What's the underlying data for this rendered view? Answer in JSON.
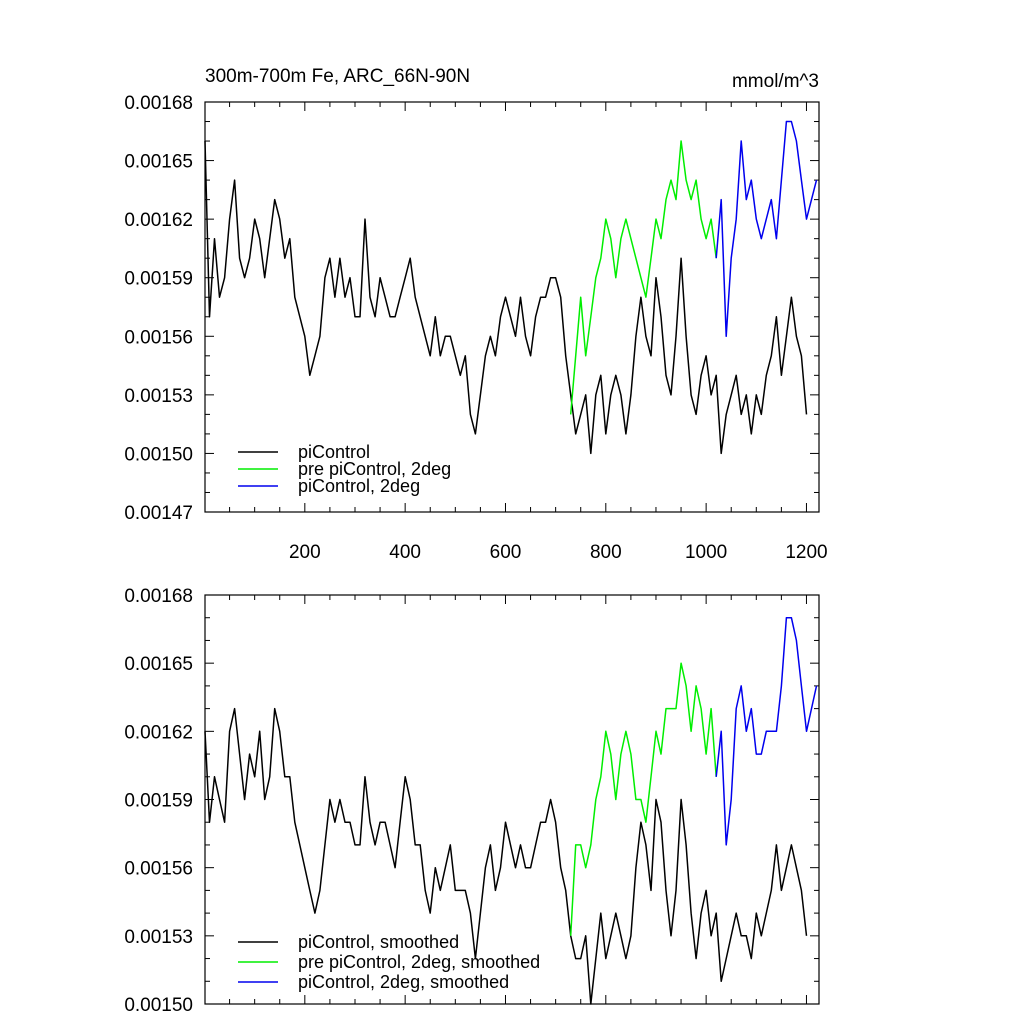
{
  "chart_data": [
    {
      "type": "line",
      "title": "300m-700m Fe, ARC_66N-90N",
      "units": "mmol/m^3",
      "xlabel": "",
      "ylabel": "",
      "xlim": [
        1,
        1225
      ],
      "ylim": [
        0.00147,
        0.00168
      ],
      "xticks": [
        200,
        400,
        600,
        800,
        1000,
        1200
      ],
      "xtick_labels": [
        "200",
        "400",
        "600",
        "800",
        "1000",
        "1200"
      ],
      "yticks": [
        0.00147,
        0.0015,
        0.00153,
        0.00156,
        0.00159,
        0.00162,
        0.00165,
        0.00168
      ],
      "ytick_labels": [
        "0.00147",
        "0.00150",
        "0.00153",
        "0.00156",
        "0.00159",
        "0.00162",
        "0.00165",
        "0.00168"
      ],
      "grid": false,
      "legend_position": "bottom-left",
      "series": [
        {
          "name": "piControl",
          "color": "#000000",
          "x": [
            1,
            10,
            20,
            30,
            40,
            50,
            60,
            70,
            80,
            90,
            100,
            110,
            120,
            130,
            140,
            150,
            160,
            170,
            180,
            190,
            200,
            210,
            220,
            230,
            240,
            250,
            260,
            270,
            280,
            290,
            300,
            310,
            320,
            330,
            340,
            350,
            360,
            370,
            380,
            390,
            400,
            410,
            420,
            430,
            440,
            450,
            460,
            470,
            480,
            490,
            500,
            510,
            520,
            530,
            540,
            550,
            560,
            570,
            580,
            590,
            600,
            610,
            620,
            630,
            640,
            650,
            660,
            670,
            680,
            690,
            700,
            710,
            720,
            730,
            740,
            750,
            760,
            770,
            780,
            790,
            800,
            810,
            820,
            830,
            840,
            850,
            860,
            870,
            880,
            890,
            900,
            910,
            920,
            930,
            940,
            950,
            960,
            970,
            980,
            990,
            1000,
            1010,
            1020,
            1030,
            1040,
            1050,
            1060,
            1070,
            1080,
            1090,
            1100,
            1110,
            1120,
            1130,
            1140,
            1150,
            1160,
            1170,
            1180,
            1190,
            1200
          ],
          "y": [
            0.00166,
            0.00157,
            0.00161,
            0.00158,
            0.00159,
            0.00162,
            0.00164,
            0.0016,
            0.00159,
            0.0016,
            0.00162,
            0.00161,
            0.00159,
            0.00161,
            0.00163,
            0.00162,
            0.0016,
            0.00161,
            0.00158,
            0.00157,
            0.00156,
            0.00154,
            0.00155,
            0.00156,
            0.00159,
            0.0016,
            0.00158,
            0.0016,
            0.00158,
            0.00159,
            0.00157,
            0.00157,
            0.00162,
            0.00158,
            0.00157,
            0.00159,
            0.00158,
            0.00157,
            0.00157,
            0.00158,
            0.00159,
            0.0016,
            0.00158,
            0.00157,
            0.00156,
            0.00155,
            0.00157,
            0.00155,
            0.00156,
            0.00156,
            0.00155,
            0.00154,
            0.00155,
            0.00152,
            0.00151,
            0.00153,
            0.00155,
            0.00156,
            0.00155,
            0.00157,
            0.00158,
            0.00157,
            0.00156,
            0.00158,
            0.00156,
            0.00155,
            0.00157,
            0.00158,
            0.00158,
            0.00159,
            0.00159,
            0.00158,
            0.00155,
            0.00153,
            0.00151,
            0.00152,
            0.00153,
            0.0015,
            0.00153,
            0.00154,
            0.00151,
            0.00153,
            0.00154,
            0.00153,
            0.00151,
            0.00153,
            0.00156,
            0.00158,
            0.00156,
            0.00155,
            0.00159,
            0.00157,
            0.00154,
            0.00153,
            0.00156,
            0.0016,
            0.00156,
            0.00153,
            0.00152,
            0.00154,
            0.00155,
            0.00153,
            0.00154,
            0.0015,
            0.00152,
            0.00153,
            0.00154,
            0.00152,
            0.00153,
            0.00151,
            0.00153,
            0.00152,
            0.00154,
            0.00155,
            0.00157,
            0.00154,
            0.00156,
            0.00158,
            0.00156,
            0.00155,
            0.00152
          ]
        },
        {
          "name": "pre piControl, 2deg",
          "color": "#00ee00",
          "x": [
            730,
            740,
            750,
            760,
            770,
            780,
            790,
            800,
            810,
            820,
            830,
            840,
            850,
            860,
            870,
            880,
            890,
            900,
            910,
            920,
            930,
            940,
            950,
            960,
            970,
            980,
            990,
            1000,
            1010,
            1020
          ],
          "y": [
            0.00152,
            0.00155,
            0.00158,
            0.00155,
            0.00157,
            0.00159,
            0.0016,
            0.00162,
            0.00161,
            0.00159,
            0.00161,
            0.00162,
            0.00161,
            0.0016,
            0.00159,
            0.00158,
            0.0016,
            0.00162,
            0.00161,
            0.00163,
            0.00164,
            0.00163,
            0.00166,
            0.00164,
            0.00163,
            0.00164,
            0.00162,
            0.00161,
            0.00162,
            0.0016
          ]
        },
        {
          "name": "piControl, 2deg",
          "color": "#0000ee",
          "x": [
            1020,
            1030,
            1040,
            1050,
            1060,
            1070,
            1080,
            1090,
            1100,
            1110,
            1120,
            1130,
            1140,
            1150,
            1160,
            1170,
            1180,
            1190,
            1200,
            1210,
            1220
          ],
          "y": [
            0.0016,
            0.00163,
            0.00156,
            0.0016,
            0.00162,
            0.00166,
            0.00163,
            0.00164,
            0.00162,
            0.00161,
            0.00162,
            0.00163,
            0.00161,
            0.00164,
            0.00167,
            0.00167,
            0.00166,
            0.00164,
            0.00162,
            0.00163,
            0.00164
          ]
        }
      ]
    },
    {
      "type": "line",
      "title": "",
      "xlabel": "",
      "ylabel": "",
      "xlim": [
        1,
        1225
      ],
      "ylim": [
        0.0015,
        0.00168
      ],
      "xticks": [
        200,
        400,
        600,
        800,
        1000,
        1200
      ],
      "yticks": [
        0.0015,
        0.00153,
        0.00156,
        0.00159,
        0.00162,
        0.00165,
        0.00168
      ],
      "ytick_labels": [
        "0.00150",
        "0.00153",
        "0.00156",
        "0.00159",
        "0.00162",
        "0.00165",
        "0.00168"
      ],
      "grid": false,
      "legend_position": "bottom-left",
      "series": [
        {
          "name": "piControl, smoothed",
          "color": "#000000",
          "x": [
            1,
            10,
            20,
            30,
            40,
            50,
            60,
            70,
            80,
            90,
            100,
            110,
            120,
            130,
            140,
            150,
            160,
            170,
            180,
            190,
            200,
            210,
            220,
            230,
            240,
            250,
            260,
            270,
            280,
            290,
            300,
            310,
            320,
            330,
            340,
            350,
            360,
            370,
            380,
            390,
            400,
            410,
            420,
            430,
            440,
            450,
            460,
            470,
            480,
            490,
            500,
            510,
            520,
            530,
            540,
            550,
            560,
            570,
            580,
            590,
            600,
            610,
            620,
            630,
            640,
            650,
            660,
            670,
            680,
            690,
            700,
            710,
            720,
            730,
            740,
            750,
            760,
            770,
            780,
            790,
            800,
            810,
            820,
            830,
            840,
            850,
            860,
            870,
            880,
            890,
            900,
            910,
            920,
            930,
            940,
            950,
            960,
            970,
            980,
            990,
            1000,
            1010,
            1020,
            1030,
            1040,
            1050,
            1060,
            1070,
            1080,
            1090,
            1100,
            1110,
            1120,
            1130,
            1140,
            1150,
            1160,
            1170,
            1180,
            1190,
            1200
          ],
          "y": [
            0.00162,
            0.00158,
            0.0016,
            0.00159,
            0.00158,
            0.00162,
            0.00163,
            0.00161,
            0.00159,
            0.00161,
            0.0016,
            0.00162,
            0.00159,
            0.0016,
            0.00163,
            0.00162,
            0.0016,
            0.0016,
            0.00158,
            0.00157,
            0.00156,
            0.00155,
            0.00154,
            0.00155,
            0.00157,
            0.00159,
            0.00158,
            0.00159,
            0.00158,
            0.00158,
            0.00157,
            0.00157,
            0.0016,
            0.00158,
            0.00157,
            0.00158,
            0.00158,
            0.00157,
            0.00156,
            0.00158,
            0.0016,
            0.00159,
            0.00157,
            0.00157,
            0.00155,
            0.00154,
            0.00156,
            0.00155,
            0.00156,
            0.00157,
            0.00155,
            0.00155,
            0.00155,
            0.00154,
            0.00152,
            0.00154,
            0.00156,
            0.00157,
            0.00155,
            0.00156,
            0.00158,
            0.00157,
            0.00156,
            0.00157,
            0.00156,
            0.00156,
            0.00157,
            0.00158,
            0.00158,
            0.00159,
            0.00158,
            0.00156,
            0.00155,
            0.00153,
            0.00152,
            0.00152,
            0.00153,
            0.0015,
            0.00152,
            0.00154,
            0.00152,
            0.00153,
            0.00154,
            0.00153,
            0.00152,
            0.00153,
            0.00156,
            0.00158,
            0.00157,
            0.00155,
            0.00159,
            0.00158,
            0.00155,
            0.00153,
            0.00155,
            0.00159,
            0.00157,
            0.00154,
            0.00152,
            0.00154,
            0.00155,
            0.00153,
            0.00154,
            0.00151,
            0.00152,
            0.00153,
            0.00154,
            0.00153,
            0.00153,
            0.00152,
            0.00154,
            0.00153,
            0.00154,
            0.00155,
            0.00157,
            0.00155,
            0.00156,
            0.00157,
            0.00156,
            0.00155,
            0.00153
          ]
        },
        {
          "name": "pre piControl, 2deg, smoothed",
          "color": "#00ee00",
          "x": [
            730,
            740,
            750,
            760,
            770,
            780,
            790,
            800,
            810,
            820,
            830,
            840,
            850,
            860,
            870,
            880,
            890,
            900,
            910,
            920,
            930,
            940,
            950,
            960,
            970,
            980,
            990,
            1000,
            1010,
            1020
          ],
          "y": [
            0.00153,
            0.00157,
            0.00157,
            0.00156,
            0.00157,
            0.00159,
            0.0016,
            0.00162,
            0.00161,
            0.00159,
            0.00161,
            0.00162,
            0.00161,
            0.00159,
            0.00159,
            0.00158,
            0.0016,
            0.00162,
            0.00161,
            0.00163,
            0.00163,
            0.00163,
            0.00165,
            0.00164,
            0.00162,
            0.00164,
            0.00163,
            0.00161,
            0.00163,
            0.0016
          ]
        },
        {
          "name": "piControl, 2deg, smoothed",
          "color": "#0000ee",
          "x": [
            1020,
            1030,
            1040,
            1050,
            1060,
            1070,
            1080,
            1090,
            1100,
            1110,
            1120,
            1130,
            1140,
            1150,
            1160,
            1170,
            1180,
            1190,
            1200,
            1210,
            1220
          ],
          "y": [
            0.0016,
            0.00162,
            0.00157,
            0.00159,
            0.00163,
            0.00164,
            0.00162,
            0.00163,
            0.00161,
            0.00161,
            0.00162,
            0.00162,
            0.00162,
            0.00164,
            0.00167,
            0.00167,
            0.00166,
            0.00164,
            0.00162,
            0.00163,
            0.00164
          ]
        }
      ]
    }
  ]
}
